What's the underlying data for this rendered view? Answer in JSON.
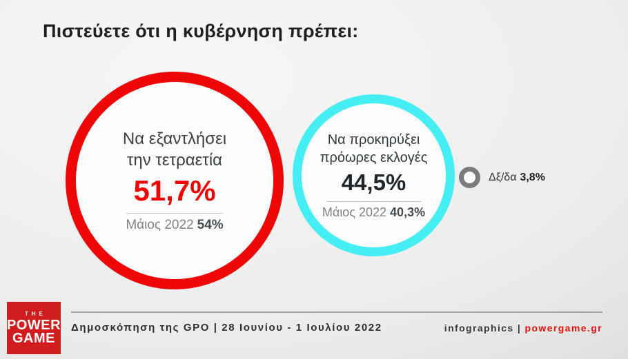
{
  "title": "Πιστεύετε ότι η κυβέρνηση πρέπει:",
  "chart_data": {
    "type": "bubble",
    "title": "Πιστεύετε ότι η κυβέρνηση πρέπει:",
    "categories": [
      "Να εξαντλήσει την τετραετία",
      "Να προκηρύξει πρόωρες εκλογές",
      "Δξ/δα"
    ],
    "series": [
      {
        "name": "28 Ιουνίου - 1 Ιουλίου 2022",
        "values": [
          51.7,
          44.5,
          3.8
        ]
      },
      {
        "name": "Μάιος 2022",
        "values": [
          54,
          40.3,
          null
        ]
      }
    ],
    "colors": [
      "#ee0505",
      "#45eef2",
      "#7b7b7b"
    ],
    "legend_position": "none",
    "grid": false
  },
  "bubbles": {
    "first": {
      "line1": "Να εξαντλήσει",
      "line2": "την τετραετία",
      "value": "51,7%",
      "prev_label": "Μάιος 2022",
      "prev_value": "54%"
    },
    "second": {
      "line1": "Να προκηρύξει",
      "line2": "πρόωρες εκλογές",
      "value": "44,5%",
      "prev_label": "Μάιος 2022",
      "prev_value": "40,3%"
    },
    "dk": {
      "label": "Δξ/δα",
      "value": "3,8%"
    }
  },
  "logo": {
    "the": "THE",
    "power": "POWER",
    "game": "GAME"
  },
  "footer": {
    "source": "Δημοσκόπηση της GPO | 28 Ιουνίου - 1 Ιουλίου 2022",
    "credit_label": "infographics | ",
    "credit_site": "powergame.gr"
  }
}
